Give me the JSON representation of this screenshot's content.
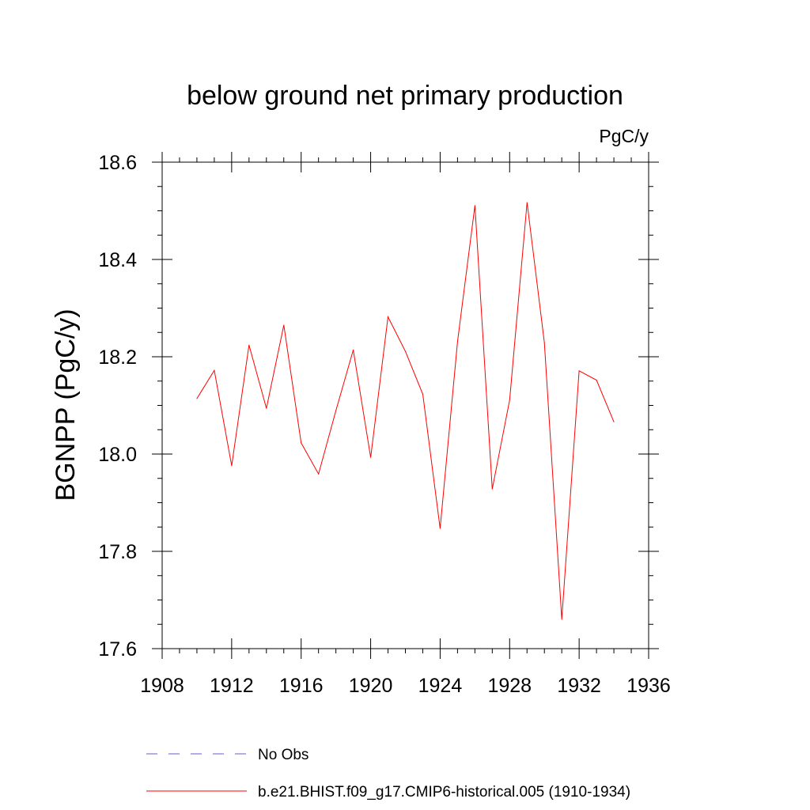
{
  "chart_data": {
    "type": "line",
    "title": "below ground net primary production",
    "units": "PgC/y",
    "xlabel": "",
    "ylabel": "BGNPP  (PgC/y)",
    "xlim": [
      1908,
      1936
    ],
    "ylim": [
      17.6,
      18.6
    ],
    "x_major_ticks": [
      1908,
      1912,
      1916,
      1920,
      1924,
      1928,
      1932,
      1936
    ],
    "x_tick_labels": [
      "1908",
      "1912",
      "1916",
      "1920",
      "1924",
      "1928",
      "1932",
      "1936"
    ],
    "y_major_ticks": [
      17.6,
      17.8,
      18.0,
      18.2,
      18.4,
      18.6
    ],
    "y_tick_labels": [
      "17.6",
      "17.8",
      "18.0",
      "18.2",
      "18.4",
      "18.6"
    ],
    "grid": false,
    "series": [
      {
        "name": "b.e21.BHIST.f09_g17.CMIP6-historical.005 (1910-1934)",
        "color": "#ff0000",
        "style": "solid",
        "x": [
          1910,
          1911,
          1912,
          1913,
          1914,
          1915,
          1916,
          1917,
          1918,
          1919,
          1920,
          1921,
          1922,
          1923,
          1924,
          1925,
          1926,
          1927,
          1928,
          1929,
          1930,
          1931,
          1932,
          1933,
          1934
        ],
        "values": [
          18.114,
          18.172,
          17.976,
          18.224,
          18.094,
          18.265,
          18.023,
          17.959,
          18.089,
          18.214,
          17.993,
          18.282,
          18.211,
          18.123,
          17.847,
          18.231,
          18.511,
          17.928,
          18.111,
          18.517,
          18.229,
          17.66,
          18.171,
          18.152,
          18.066
        ]
      }
    ],
    "legend": {
      "placement": "bottom",
      "entries": [
        {
          "label": "No Obs",
          "color": "#6a5acd",
          "style": "dashed"
        },
        {
          "label": "b.e21.BHIST.f09_g17.CMIP6-historical.005 (1910-1934)",
          "color": "#ff0000",
          "style": "solid"
        }
      ]
    }
  }
}
